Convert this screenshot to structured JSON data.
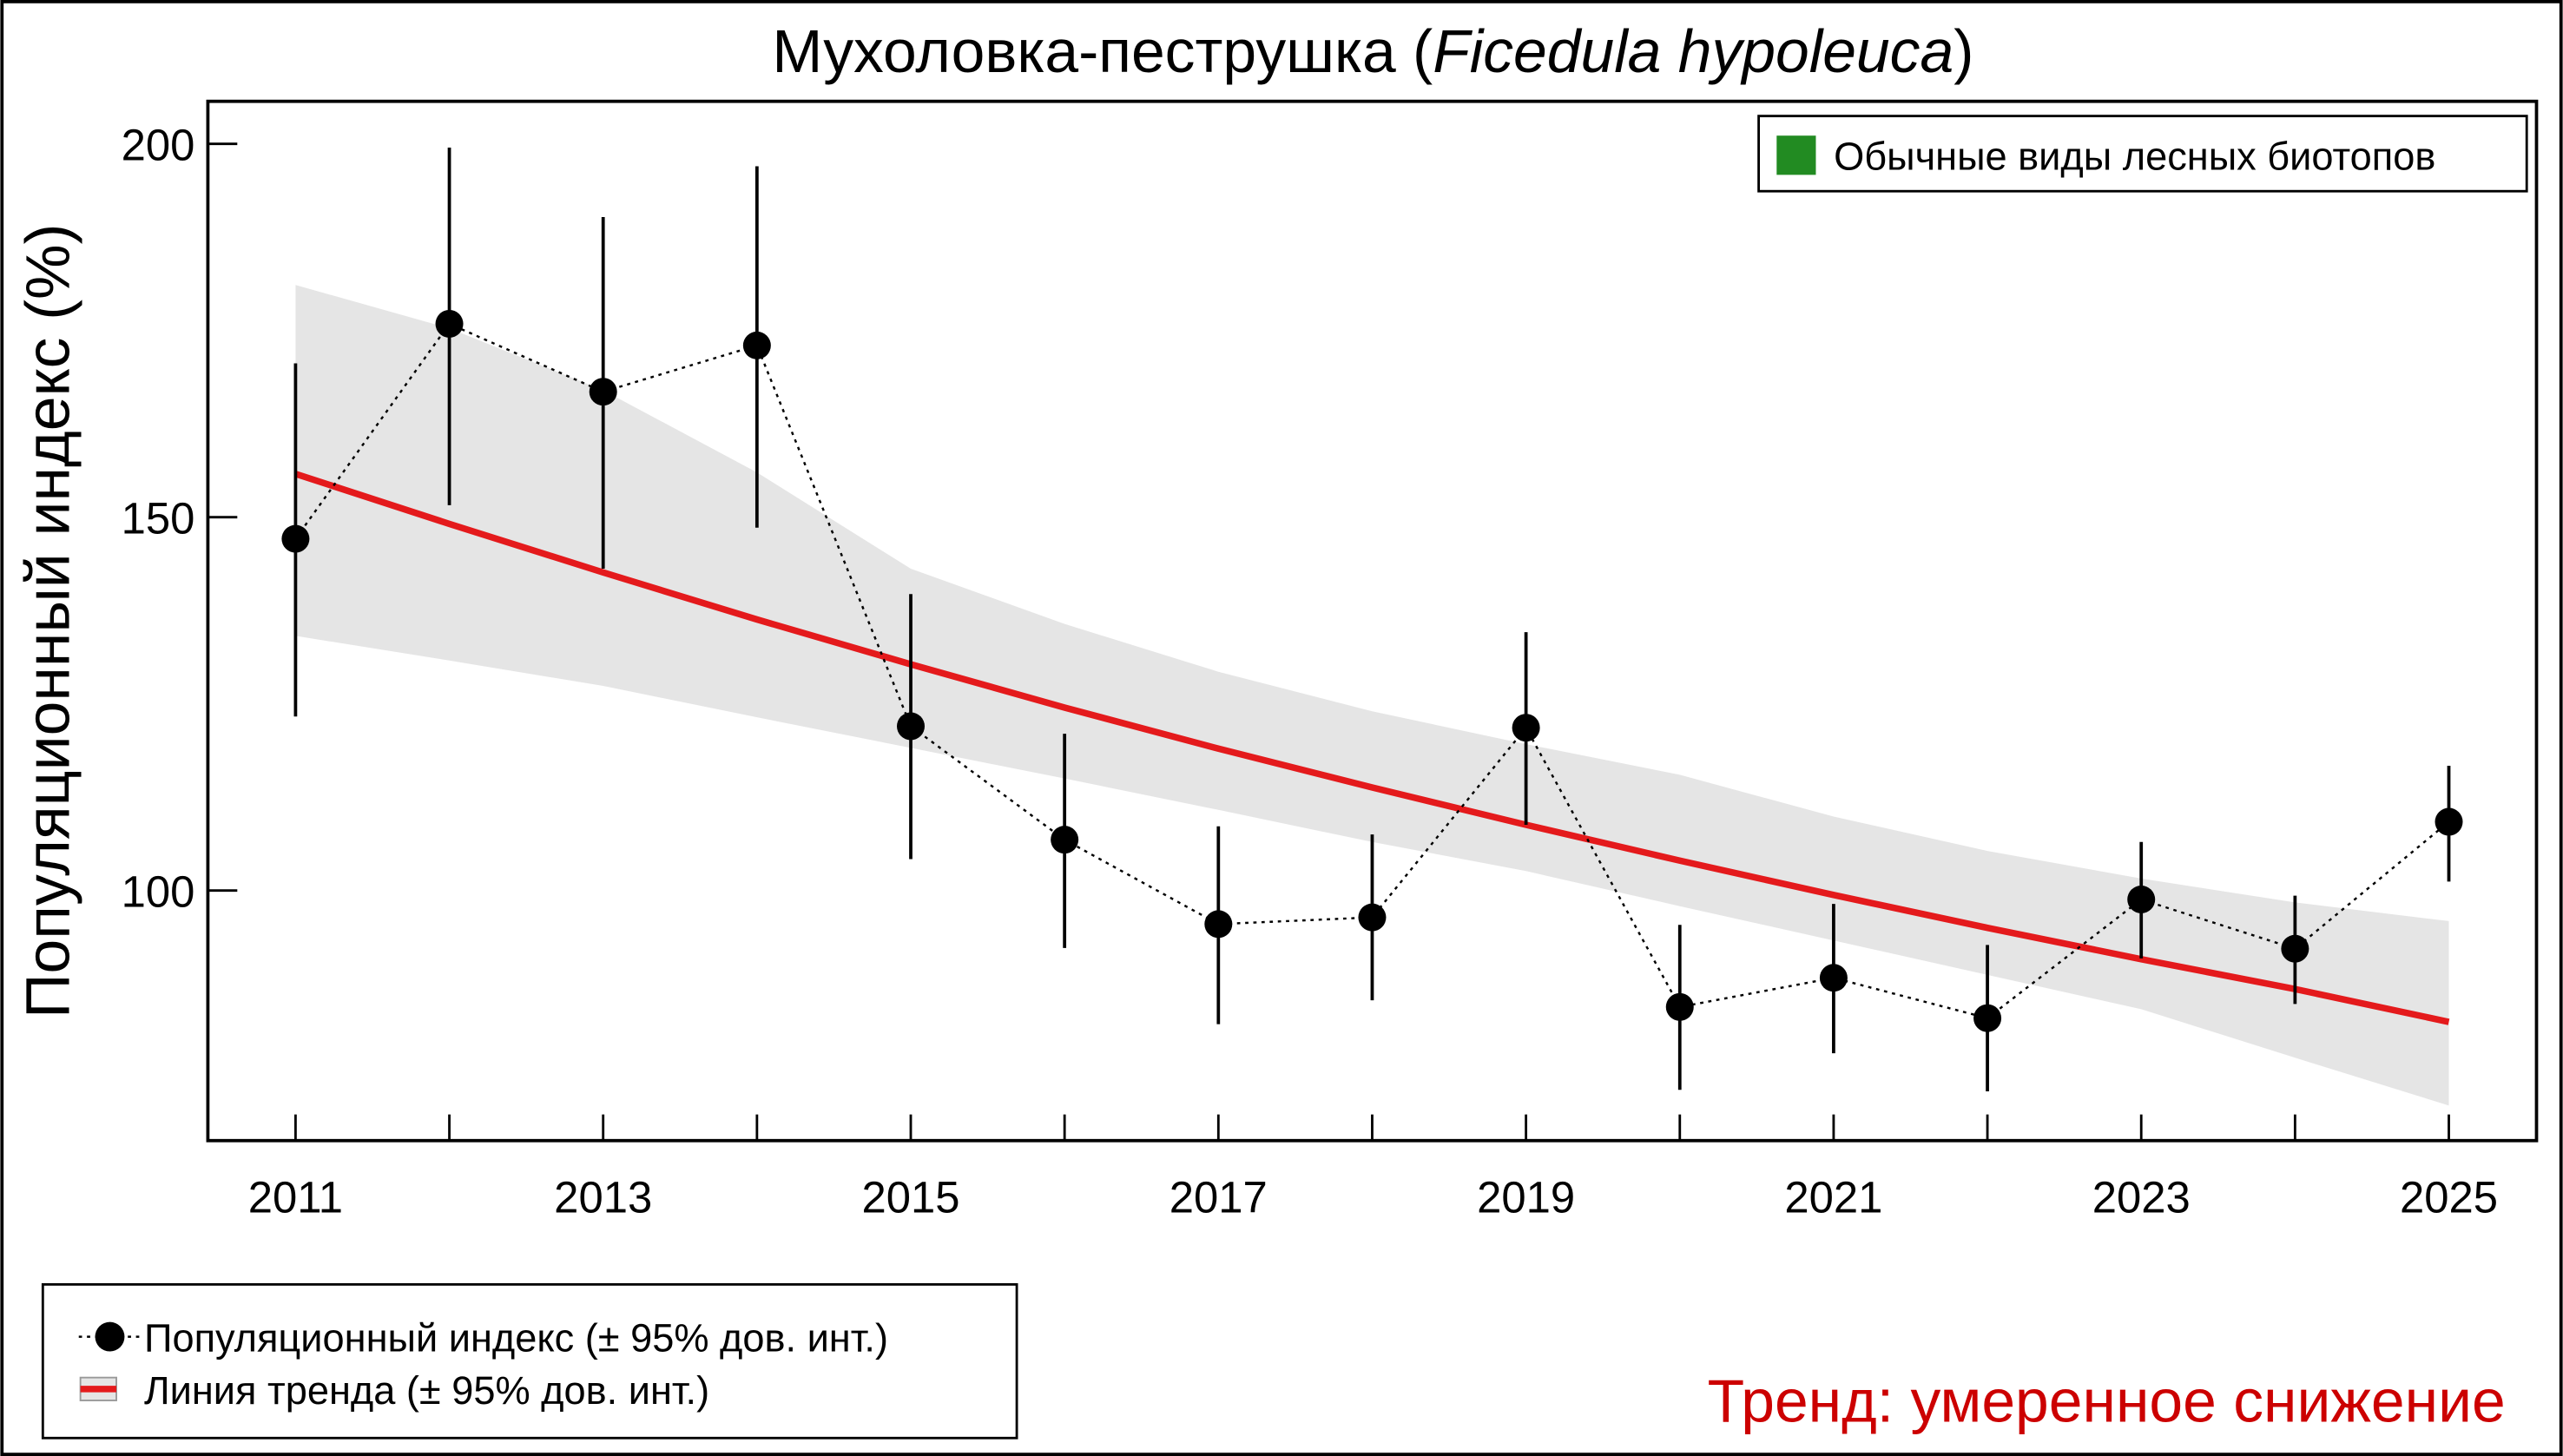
{
  "chart_data": {
    "type": "line",
    "title": {
      "main": "Мухоловка-пеструшка (",
      "species": "Ficedula hypoleuca",
      "close": ")"
    },
    "xlabel": "",
    "ylabel": "Популяционный индекс (%)",
    "xlim": [
      2010.43,
      2025.57
    ],
    "ylim": [
      66.5,
      205.7
    ],
    "x_ticks": [
      2011,
      2012,
      2013,
      2014,
      2015,
      2016,
      2017,
      2018,
      2019,
      2020,
      2021,
      2022,
      2023,
      2024,
      2025
    ],
    "x_tick_labels": [
      "2011",
      "",
      "2013",
      "",
      "2015",
      "",
      "2017",
      "",
      "2019",
      "",
      "2021",
      "",
      "2023",
      "",
      "2025"
    ],
    "y_ticks": [
      100,
      150,
      200
    ],
    "y_tick_labels": [
      "100",
      "150",
      "200"
    ],
    "grid": false,
    "x": [
      2011,
      2012,
      2013,
      2014,
      2015,
      2016,
      2017,
      2018,
      2019,
      2020,
      2021,
      2022,
      2023,
      2024,
      2025
    ],
    "index": {
      "values": [
        147.1,
        175.9,
        166.8,
        173.0,
        122.0,
        106.8,
        95.5,
        96.4,
        121.8,
        84.4,
        88.3,
        82.9,
        98.8,
        92.2,
        109.2
      ],
      "ci_low": [
        123.3,
        151.6,
        143.1,
        148.6,
        104.2,
        92.3,
        82.1,
        85.3,
        108.8,
        73.3,
        78.2,
        73.1,
        90.9,
        84.8,
        101.2
      ],
      "ci_high": [
        170.6,
        199.5,
        190.2,
        197.0,
        139.7,
        121.0,
        108.6,
        107.5,
        134.6,
        95.4,
        98.2,
        92.7,
        106.5,
        99.3,
        116.7
      ]
    },
    "trend": {
      "values": [
        155.8,
        149.1,
        142.6,
        136.3,
        130.3,
        124.5,
        119.0,
        113.8,
        108.8,
        104.0,
        99.4,
        95.0,
        90.8,
        86.8,
        82.4
      ],
      "band_low": [
        134.1,
        130.8,
        127.4,
        123.2,
        119.1,
        115.0,
        110.8,
        106.5,
        102.6,
        97.9,
        93.3,
        88.7,
        84.1,
        77.6,
        71.2
      ],
      "band_high": [
        181.1,
        175.3,
        167.0,
        156.0,
        143.1,
        135.7,
        129.3,
        124.0,
        119.6,
        115.5,
        109.9,
        105.3,
        101.6,
        98.4,
        95.9
      ]
    },
    "legend": {
      "placement": "bottom-left",
      "index_label": "Популяционный индекс (± 95% дов. инт.)",
      "trend_label": "Линия тренда (± 95% дов. инт.)"
    },
    "group_legend": {
      "placement": "top-right",
      "label": "Обычные виды лесных биотопов",
      "color": "#228B22"
    },
    "annotation": "Тренд: умеренное снижение",
    "colors": {
      "trend": "#e41a1c",
      "band": "#e5e5e5",
      "points": "#000000",
      "annotation": "#cc0000"
    }
  }
}
